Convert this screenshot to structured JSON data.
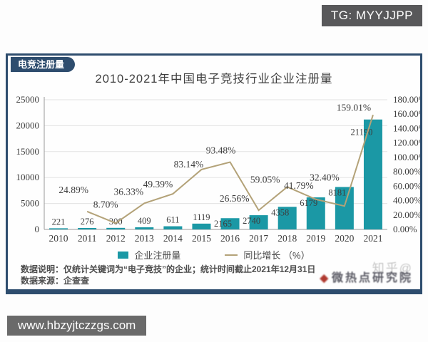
{
  "page": {
    "tg_badge": "TG: MYYJJPP",
    "url_bar": "www.hbzyjtczzgs.com"
  },
  "panel": {
    "corner_badge": "电竞注册量",
    "title": "2010-2021年中国电子竞技行业企业注册量",
    "legend": {
      "bar_label": "企业注册量",
      "line_label": "同比增长 （%）"
    },
    "footnote1": "数据说明：仅统计关键词为“电子竞技”的企业；统计时间截止2021年12月31日",
    "footnote2": "数据来源：企查查",
    "watermark_gray": "知乎@",
    "watermark_dark": "微热点研究院"
  },
  "chart_data": {
    "type": "bar",
    "title": "2010-2021年中国电子竞技行业企业注册量",
    "categories": [
      "2010",
      "2011",
      "2012",
      "2013",
      "2014",
      "2015",
      "2016",
      "2017",
      "2018",
      "2019",
      "2020",
      "2021"
    ],
    "series": [
      {
        "name": "企业注册量",
        "type": "bar",
        "color": "#1b98a5",
        "values": [
          221,
          276,
          300,
          409,
          611,
          1119,
          2165,
          2740,
          4358,
          6179,
          8181,
          21190
        ]
      },
      {
        "name": "同比增长 (%)",
        "type": "line",
        "color": "#b3a278",
        "values": [
          null,
          24.89,
          8.7,
          36.33,
          49.39,
          83.14,
          93.48,
          26.56,
          59.05,
          41.79,
          32.4,
          159.01
        ]
      }
    ],
    "left_axis": {
      "min": 0,
      "max": 25000,
      "step": 5000,
      "ticks": [
        "0",
        "5000",
        "10000",
        "15000",
        "20000",
        "25000"
      ]
    },
    "right_axis": {
      "min": 0,
      "max": 180,
      "step": 20,
      "suffix": "%",
      "ticks": [
        "0.00%",
        "20.00%",
        "40.00%",
        "60.00%",
        "80.00%",
        "100.00%",
        "120.00%",
        "140.00%",
        "160.00%",
        "180.00%"
      ]
    },
    "grid": true,
    "legend_position": "bottom"
  }
}
